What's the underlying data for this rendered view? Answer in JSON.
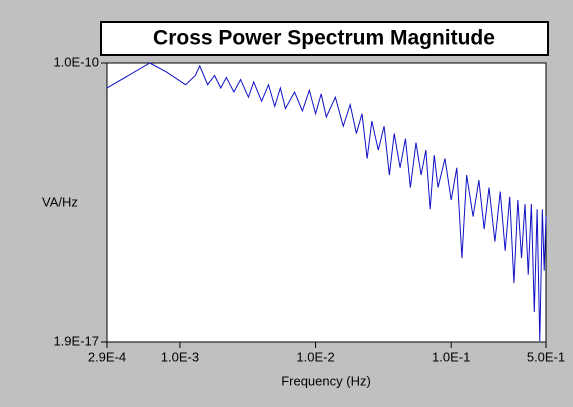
{
  "chart_data": {
    "type": "line",
    "title": "Cross Power Spectrum Magnitude",
    "x_label": "Frequency (Hz)",
    "y_label": "VA/Hz",
    "log_x": true,
    "log_y": true,
    "xlim": [
      0.00029,
      0.5
    ],
    "xticks": [
      {
        "value": 0.00029,
        "label": "2.9E-4"
      },
      {
        "value": 0.001,
        "label": "1.0E-3"
      },
      {
        "value": 0.01,
        "label": "1.0E-2"
      },
      {
        "value": 0.1,
        "label": "1.0E-1"
      },
      {
        "value": 0.5,
        "label": "5.0E-1"
      }
    ],
    "ylim": [
      1.9e-17,
      1e-10
    ],
    "yticks": [
      {
        "value": 1.9e-17,
        "label": "1.9E-17"
      },
      {
        "value": 1e-10,
        "label": "1.0E-10"
      }
    ],
    "color": "#1010c8",
    "x": [
      0.00029,
      0.0006,
      0.0008,
      0.0011,
      0.0013,
      0.0014,
      0.0016,
      0.0018,
      0.002,
      0.0022,
      0.0025,
      0.0028,
      0.0032,
      0.0035,
      0.004,
      0.0045,
      0.005,
      0.0055,
      0.006,
      0.007,
      0.008,
      0.009,
      0.01,
      0.011,
      0.012,
      0.014,
      0.016,
      0.018,
      0.02,
      0.022,
      0.024,
      0.026,
      0.029,
      0.032,
      0.035,
      0.038,
      0.042,
      0.046,
      0.05,
      0.055,
      0.06,
      0.065,
      0.07,
      0.075,
      0.08,
      0.09,
      0.1,
      0.11,
      0.12,
      0.13,
      0.145,
      0.16,
      0.175,
      0.19,
      0.21,
      0.23,
      0.25,
      0.27,
      0.29,
      0.31,
      0.33,
      0.35,
      0.37,
      0.39,
      0.41,
      0.43,
      0.45,
      0.47,
      0.485,
      0.5
    ],
    "values": [
      2.5e-11,
      1e-10,
      6e-11,
      3e-11,
      5e-11,
      8.5e-11,
      3e-11,
      5e-11,
      2.5e-11,
      4.5e-11,
      2e-11,
      4e-11,
      1.5e-11,
      3.5e-11,
      1.2e-11,
      3e-11,
      9e-12,
      2.5e-11,
      8e-12,
      2e-11,
      7e-12,
      2.2e-11,
      6e-12,
      1.8e-11,
      5e-12,
      1.5e-11,
      3e-12,
      1e-11,
      2e-12,
      6e-12,
      5e-13,
      4e-12,
      8e-13,
      3e-12,
      2e-13,
      2e-12,
      3e-13,
      1.5e-12,
      1e-13,
      1.2e-12,
      2e-13,
      8e-13,
      3e-14,
      6e-13,
      1e-13,
      5e-13,
      5e-14,
      3e-13,
      2e-15,
      2e-13,
      2e-14,
      1.5e-13,
      1e-14,
      1e-13,
      5e-15,
      8e-14,
      3e-15,
      6e-14,
      5e-16,
      5e-14,
      2e-15,
      4e-14,
      8e-16,
      4e-14,
      1e-16,
      3e-14,
      2e-17,
      3e-14,
      1e-15,
      2e-14
    ]
  }
}
